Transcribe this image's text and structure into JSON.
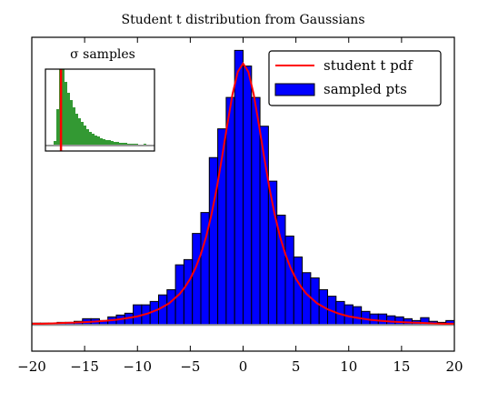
{
  "chart_data": [
    {
      "type": "histogram",
      "title": "Student t distribution from Gaussians",
      "bins": [
        -20,
        -19.2,
        -18.4,
        -17.6,
        -16.8,
        -16,
        -15.2,
        -14.4,
        -13.6,
        -12.8,
        -12,
        -11.2,
        -10.4,
        -9.6,
        -8.8,
        -8,
        -7.2,
        -6.4,
        -5.6,
        -4.8,
        -4,
        -3.2,
        -2.4,
        -1.6,
        -0.8,
        0,
        0.8,
        1.6,
        2.4,
        3.2,
        4,
        4.8,
        5.6,
        6.4,
        7.2,
        8,
        8.8,
        9.6,
        10.4,
        11.2,
        12,
        12.8,
        13.6,
        14.4,
        15.2,
        16,
        16.8,
        17.6,
        18.4,
        19.2,
        20
      ],
      "values": [
        0.0007,
        0.0007,
        0.0007,
        0.001,
        0.001,
        0.0014,
        0.0024,
        0.0024,
        0.0017,
        0.0031,
        0.0038,
        0.0045,
        0.0077,
        0.0077,
        0.009,
        0.0115,
        0.0135,
        0.023,
        0.025,
        0.035,
        0.043,
        0.064,
        0.075,
        0.087,
        0.105,
        0.099,
        0.087,
        0.076,
        0.055,
        0.042,
        0.034,
        0.026,
        0.02,
        0.018,
        0.0135,
        0.011,
        0.009,
        0.0077,
        0.007,
        0.0052,
        0.0042,
        0.0042,
        0.0035,
        0.0031,
        0.0024,
        0.0017,
        0.0028,
        0.0014,
        0.001,
        0.0017
      ],
      "name": "sampled pts",
      "color": "#0000ff",
      "edgecolor": "#000000",
      "line": {
        "name": "student t pdf",
        "color": "#ff0000",
        "x": [
          -20,
          -19,
          -18,
          -17,
          -16,
          -15,
          -14,
          -13,
          -12,
          -11,
          -10,
          -9,
          -8,
          -7,
          -6,
          -5.5,
          -5,
          -4.5,
          -4,
          -3.5,
          -3,
          -2.5,
          -2,
          -1.5,
          -1,
          -0.5,
          0,
          0.5,
          1,
          1.5,
          2,
          2.5,
          3,
          3.5,
          4,
          4.5,
          5,
          5.5,
          6,
          7,
          8,
          9,
          10,
          11,
          12,
          13,
          14,
          15,
          16,
          17,
          18,
          19,
          20
        ],
        "values": [
          0.0005,
          0.0005,
          0.0006,
          0.0008,
          0.0009,
          0.0011,
          0.0013,
          0.0016,
          0.002,
          0.0026,
          0.0033,
          0.0044,
          0.006,
          0.0083,
          0.0119,
          0.0145,
          0.0177,
          0.0218,
          0.0271,
          0.0337,
          0.0421,
          0.0522,
          0.064,
          0.0765,
          0.0883,
          0.0968,
          0.1,
          0.0968,
          0.0883,
          0.0765,
          0.064,
          0.0522,
          0.0421,
          0.0337,
          0.0271,
          0.0218,
          0.0177,
          0.0145,
          0.0119,
          0.0083,
          0.006,
          0.0044,
          0.0033,
          0.0026,
          0.002,
          0.0016,
          0.0013,
          0.0011,
          0.0009,
          0.0008,
          0.0006,
          0.0005,
          0.0005
        ]
      },
      "hline": 0,
      "hline_color": "#999999",
      "xlim": [
        -20,
        20
      ],
      "ylim": [
        -0.01,
        0.11
      ],
      "xticks": [
        {
          "value": -20,
          "label": "−20"
        },
        {
          "value": -15,
          "label": "−15"
        },
        {
          "value": -10,
          "label": "−10"
        },
        {
          "value": -5,
          "label": "−5"
        },
        0,
        5,
        10,
        15,
        20
      ],
      "legend": "upper right"
    },
    {
      "type": "histogram",
      "title": "σ samples",
      "bins": [
        3,
        4,
        5,
        6,
        7,
        8,
        9,
        10,
        11,
        12,
        13,
        14,
        15,
        16,
        17,
        18,
        19,
        20,
        21,
        22,
        23,
        24,
        25,
        26,
        27,
        28,
        29,
        30,
        31,
        32,
        33,
        34,
        35,
        36,
        37,
        38,
        39,
        40
      ],
      "values": [
        5,
        40,
        84,
        84,
        70,
        58,
        50,
        42,
        35,
        30,
        26,
        22,
        18,
        15,
        13,
        11,
        10,
        8,
        7,
        6,
        6,
        5,
        4,
        4,
        3,
        3,
        3,
        2,
        2,
        2,
        2,
        1,
        1,
        2,
        1,
        1,
        1
      ],
      "color": "#339933",
      "vline": 5.7,
      "vline_color": "#ff0000",
      "hline": 0,
      "hline_color": "#999999",
      "xlim": [
        0,
        40
      ],
      "ylim": [
        -6,
        84
      ]
    }
  ]
}
